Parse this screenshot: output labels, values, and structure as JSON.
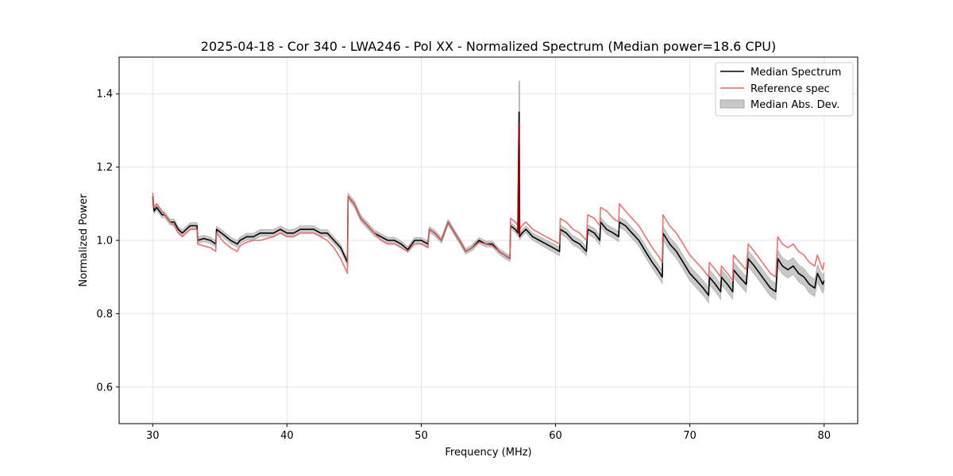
{
  "chart_data": {
    "type": "line",
    "title": "2025-04-18 - Cor 340 - LWA246 - Pol XX - Normalized Spectrum (Median power=18.6 CPU)",
    "xlabel": "Frequency (MHz)",
    "ylabel": "Normalized Power",
    "xlim": [
      27.5,
      82.5
    ],
    "ylim": [
      0.5,
      1.5
    ],
    "xticks": [
      30,
      40,
      50,
      60,
      70,
      80
    ],
    "xtick_labels": [
      "30",
      "40",
      "50",
      "60",
      "70",
      "80"
    ],
    "yticks": [
      0.6,
      0.8,
      1.0,
      1.2,
      1.4
    ],
    "ytick_labels": [
      "0.6",
      "0.8",
      "1.0",
      "1.2",
      "1.4"
    ],
    "grid": true,
    "legend_position": "top-right",
    "legend": [
      "Median Spectrum",
      "Reference spec",
      "Median Abs. Dev."
    ],
    "colors": {
      "median": "#000000",
      "reference": "#f06060",
      "mad_fill": "#c8c8c8",
      "mad_edge": "#a8a8a8",
      "grid": "#e6e6e6"
    },
    "series": [
      {
        "name": "Median Spectrum",
        "x": [
          30.0,
          30.1,
          30.3,
          30.5,
          30.7,
          30.9,
          31.1,
          31.3,
          31.6,
          31.9,
          32.2,
          32.5,
          32.8,
          33.0,
          33.3,
          33.35,
          33.8,
          34.3,
          34.7,
          34.75,
          35.3,
          35.8,
          36.3,
          36.5,
          37.0,
          37.5,
          38.0,
          38.5,
          39.0,
          39.5,
          40.0,
          40.5,
          41.0,
          41.5,
          42.0,
          42.5,
          43.0,
          43.5,
          44.0,
          44.5,
          44.55,
          45.0,
          45.5,
          46.0,
          46.5,
          47.0,
          47.5,
          48.0,
          48.5,
          49.0,
          49.5,
          50.0,
          50.5,
          50.6,
          51.0,
          51.5,
          52.0,
          52.5,
          53.0,
          53.3,
          53.8,
          54.3,
          54.8,
          55.3,
          55.8,
          56.2,
          56.6,
          56.65,
          57.0,
          57.2,
          57.28,
          57.32,
          57.5,
          57.8,
          58.3,
          58.8,
          59.3,
          59.8,
          60.3,
          60.35,
          60.8,
          61.3,
          61.8,
          62.3,
          62.4,
          62.9,
          63.3,
          63.35,
          63.8,
          64.3,
          64.7,
          64.75,
          65.2,
          65.7,
          66.2,
          66.7,
          67.2,
          67.6,
          67.95,
          68.0,
          68.5,
          69.0,
          69.5,
          70.0,
          70.5,
          71.0,
          71.4,
          71.45,
          71.9,
          72.3,
          72.35,
          72.8,
          73.2,
          73.25,
          73.7,
          74.2,
          74.35,
          74.8,
          75.2,
          75.6,
          76.0,
          76.4,
          76.55,
          76.9,
          77.3,
          77.7,
          78.1,
          78.5,
          78.9,
          79.3,
          79.5,
          79.9,
          80.0
        ],
        "y": [
          1.12,
          1.08,
          1.09,
          1.08,
          1.07,
          1.07,
          1.06,
          1.05,
          1.05,
          1.03,
          1.02,
          1.03,
          1.04,
          1.04,
          1.04,
          1.0,
          1.005,
          1.0,
          0.99,
          1.03,
          1.015,
          1.0,
          0.99,
          1.0,
          1.01,
          1.01,
          1.02,
          1.02,
          1.02,
          1.03,
          1.02,
          1.02,
          1.03,
          1.03,
          1.03,
          1.02,
          1.02,
          1.0,
          0.98,
          0.94,
          1.12,
          1.1,
          1.06,
          1.04,
          1.02,
          1.01,
          1.0,
          1.0,
          0.99,
          0.975,
          1.0,
          1.0,
          0.99,
          1.03,
          1.02,
          1.0,
          1.05,
          1.02,
          0.99,
          0.97,
          0.98,
          1.0,
          0.99,
          0.99,
          0.97,
          0.96,
          0.95,
          1.04,
          1.03,
          1.02,
          1.35,
          1.01,
          1.02,
          1.03,
          1.01,
          1.0,
          0.99,
          0.98,
          0.97,
          1.03,
          1.02,
          1.0,
          0.99,
          0.97,
          1.03,
          1.02,
          1.0,
          1.05,
          1.03,
          1.02,
          1.01,
          1.05,
          1.04,
          1.02,
          1.0,
          0.97,
          0.94,
          0.92,
          0.9,
          1.02,
          0.99,
          0.97,
          0.94,
          0.91,
          0.89,
          0.87,
          0.85,
          0.9,
          0.88,
          0.86,
          0.9,
          0.88,
          0.86,
          0.92,
          0.9,
          0.88,
          0.95,
          0.93,
          0.91,
          0.89,
          0.87,
          0.86,
          0.95,
          0.93,
          0.92,
          0.93,
          0.91,
          0.9,
          0.88,
          0.87,
          0.91,
          0.88,
          0.89
        ]
      },
      {
        "name": "Reference spec",
        "x": [
          30.0,
          30.1,
          30.3,
          30.5,
          30.7,
          30.9,
          31.1,
          31.3,
          31.6,
          31.9,
          32.2,
          32.5,
          32.8,
          33.0,
          33.3,
          33.35,
          33.8,
          34.3,
          34.7,
          34.75,
          35.3,
          35.8,
          36.3,
          36.5,
          37.0,
          37.5,
          38.0,
          38.5,
          39.0,
          39.5,
          40.0,
          40.5,
          41.0,
          41.5,
          42.0,
          42.5,
          43.0,
          43.5,
          44.0,
          44.5,
          44.55,
          45.0,
          45.5,
          46.0,
          46.5,
          47.0,
          47.5,
          48.0,
          48.5,
          49.0,
          49.5,
          50.0,
          50.5,
          50.6,
          51.0,
          51.5,
          52.0,
          52.5,
          53.0,
          53.3,
          53.8,
          54.3,
          54.8,
          55.3,
          55.8,
          56.2,
          56.6,
          56.65,
          57.0,
          57.2,
          57.28,
          57.32,
          57.5,
          57.8,
          58.3,
          58.8,
          59.3,
          59.8,
          60.3,
          60.35,
          60.8,
          61.3,
          61.8,
          62.3,
          62.4,
          62.9,
          63.3,
          63.35,
          63.8,
          64.3,
          64.7,
          64.75,
          65.2,
          65.7,
          66.2,
          66.7,
          67.2,
          67.6,
          67.95,
          68.0,
          68.5,
          69.0,
          69.5,
          70.0,
          70.5,
          71.0,
          71.4,
          71.45,
          71.9,
          72.3,
          72.35,
          72.8,
          73.2,
          73.25,
          73.7,
          74.2,
          74.35,
          74.8,
          75.2,
          75.6,
          76.0,
          76.4,
          76.55,
          76.9,
          77.3,
          77.7,
          78.1,
          78.5,
          78.9,
          79.3,
          79.5,
          79.9,
          80.0
        ],
        "y": [
          1.13,
          1.09,
          1.1,
          1.09,
          1.08,
          1.07,
          1.06,
          1.05,
          1.04,
          1.02,
          1.01,
          1.02,
          1.03,
          1.03,
          1.03,
          0.99,
          0.985,
          0.98,
          0.97,
          1.02,
          0.995,
          0.98,
          0.97,
          0.985,
          0.995,
          1.0,
          1.0,
          1.005,
          1.01,
          1.02,
          1.01,
          1.01,
          1.02,
          1.02,
          1.02,
          1.01,
          1.0,
          0.98,
          0.95,
          0.91,
          1.12,
          1.1,
          1.06,
          1.04,
          1.02,
          1.0,
          0.99,
          0.99,
          0.98,
          0.97,
          0.99,
          0.99,
          0.98,
          1.03,
          1.02,
          1.0,
          1.05,
          1.02,
          0.99,
          0.97,
          0.98,
          0.995,
          0.99,
          0.985,
          0.97,
          0.96,
          0.95,
          1.06,
          1.05,
          1.04,
          1.32,
          1.03,
          1.04,
          1.05,
          1.03,
          1.02,
          1.01,
          1.0,
          0.99,
          1.06,
          1.05,
          1.03,
          1.02,
          1.0,
          1.07,
          1.06,
          1.04,
          1.09,
          1.08,
          1.06,
          1.05,
          1.1,
          1.08,
          1.06,
          1.04,
          1.01,
          0.98,
          0.96,
          0.94,
          1.07,
          1.04,
          1.02,
          0.99,
          0.96,
          0.94,
          0.92,
          0.9,
          0.94,
          0.92,
          0.9,
          0.93,
          0.91,
          0.89,
          0.96,
          0.94,
          0.92,
          0.99,
          0.97,
          0.95,
          0.93,
          0.91,
          0.9,
          1.01,
          0.99,
          0.98,
          0.99,
          0.97,
          0.96,
          0.94,
          0.93,
          0.96,
          0.92,
          0.94
        ]
      }
    ],
    "mad_band_halfwidth": {
      "x": [
        30.0,
        40.0,
        50.0,
        56.6,
        60.0,
        65.0,
        68.0,
        70.0,
        75.0,
        80.0
      ],
      "dev": [
        0.008,
        0.01,
        0.008,
        0.008,
        0.012,
        0.014,
        0.018,
        0.02,
        0.022,
        0.024
      ]
    },
    "spike": {
      "x": 57.3,
      "mad_top": 1.435,
      "mad_bottom": 1.28
    }
  }
}
